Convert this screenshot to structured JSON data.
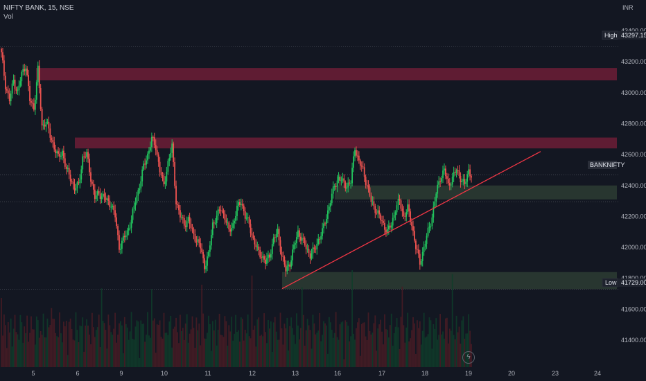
{
  "header": {
    "title": "NIFTY BANK, 15, NSE",
    "volume_label": "Vol"
  },
  "axis": {
    "currency": "INR",
    "high_label": "High",
    "high_value": "43297.15",
    "low_label": "Low",
    "low_value": "41729.00",
    "symbol_badge": "BANKNIFTY"
  },
  "colors": {
    "background": "#131722",
    "up": "#26a69a",
    "up_bright": "#22c55e",
    "down": "#ef5350",
    "resistance_zone": "#7a1f3a",
    "support_zone": "#2b3a32",
    "trendline": "#f23645"
  },
  "chart_data": {
    "type": "candlestick",
    "title": "NIFTY BANK, 15, NSE",
    "ylabel": "INR",
    "ylim": [
      41270,
      43510
    ],
    "y_ticks": [
      43400,
      43200,
      43000,
      42800,
      42600,
      42400,
      42200,
      42000,
      41800,
      41600,
      41400
    ],
    "y_tick_labels": [
      "43400.00",
      "43200.00",
      "43000.00",
      "42800.00",
      "42600.00",
      "42400.00",
      "42200.00",
      "42000.00",
      "41800.00",
      "41600.00",
      "41400.00"
    ],
    "x_tick_labels": [
      "5",
      "6",
      "9",
      "10",
      "11",
      "12",
      "13",
      "16",
      "17",
      "18",
      "19",
      "20",
      "23",
      "24"
    ],
    "x_tick_index": [
      20,
      45,
      70,
      95,
      120,
      145,
      170,
      195,
      220,
      245,
      270,
      295,
      320,
      345
    ],
    "high": 43297.15,
    "low": 41729.0,
    "last_price_label": "BANKNIFTY",
    "last_price": 42470,
    "closes": [
      43250,
      43050,
      42950,
      43080,
      43000,
      43120,
      43180,
      42950,
      42900,
      43150,
      42780,
      42820,
      42720,
      42650,
      42580,
      42620,
      42500,
      42450,
      42380,
      42400,
      42580,
      42600,
      42450,
      42320,
      42350,
      42330,
      42300,
      42280,
      42200,
      42000,
      42050,
      42100,
      42180,
      42300,
      42400,
      42520,
      42600,
      42700,
      42650,
      42500,
      42400,
      42550,
      42650,
      42300,
      42200,
      42150,
      42180,
      42100,
      42050,
      42000,
      41880,
      41950,
      42150,
      42200,
      42250,
      42200,
      42100,
      42150,
      42250,
      42300,
      42200,
      42150,
      42050,
      41980,
      41950,
      41900,
      41950,
      42050,
      42100,
      41950,
      41850,
      41900,
      42000,
      42100,
      42050,
      42000,
      41950,
      41980,
      42050,
      42100,
      42200,
      42300,
      42400,
      42450,
      42420,
      42400,
      42420,
      42650,
      42550,
      42500,
      42400,
      42300,
      42250,
      42200,
      42150,
      42100,
      42150,
      42250,
      42300,
      42200,
      42250,
      42150,
      42000,
      41900,
      42000,
      42100,
      42200,
      42350,
      42450,
      42500,
      42400,
      42450,
      42500,
      42450,
      42400,
      42500,
      42450
    ],
    "volume_note": "volume bars shown beneath candles",
    "zones": [
      {
        "kind": "resistance",
        "from": 43080,
        "to": 43160
      },
      {
        "kind": "resistance",
        "from": 42640,
        "to": 42710
      },
      {
        "kind": "support",
        "from": 42310,
        "to": 42400
      },
      {
        "kind": "support",
        "from": 41730,
        "to": 41840
      }
    ],
    "trendline": {
      "from_index": 88,
      "from_value": 41733,
      "to_index": 169,
      "to_value": 42620
    },
    "grid": false,
    "legend": "top-left"
  }
}
